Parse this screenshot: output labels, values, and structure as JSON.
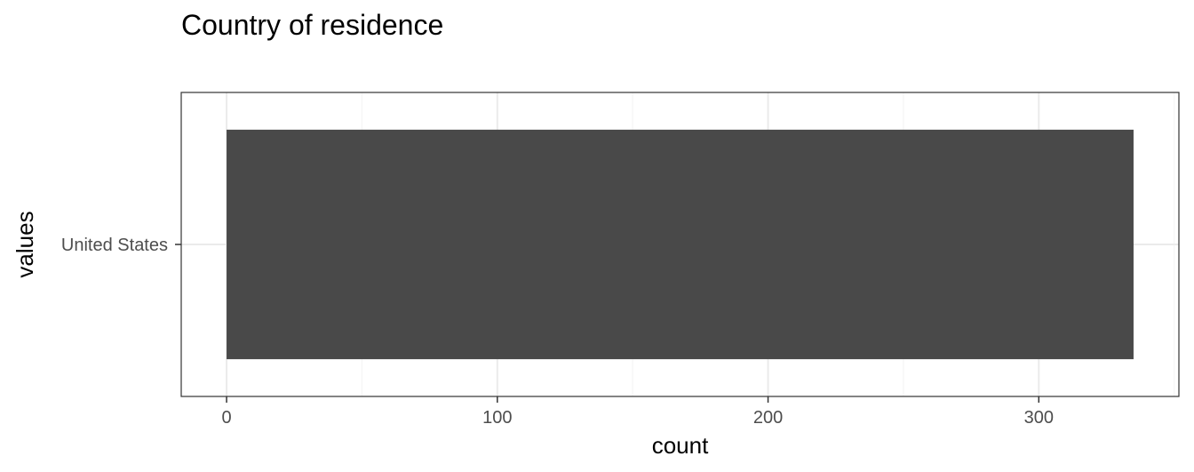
{
  "chart_data": {
    "type": "bar",
    "orientation": "horizontal",
    "title": "Country of residence",
    "xlabel": "count",
    "ylabel": "values",
    "categories": [
      "United States"
    ],
    "values": [
      335
    ],
    "xlim": [
      -16.75,
      351.75
    ],
    "xticks": [
      0,
      100,
      200,
      300
    ],
    "xtick_labels": [
      "0",
      "100",
      "200",
      "300"
    ],
    "grid": true,
    "theme": "bw",
    "colors": {
      "bar": "#494949",
      "grid_major": "#ebebeb",
      "grid_minor": "#f5f5f5",
      "panel_border": "#333333",
      "tick_text": "#4d4d4d"
    }
  }
}
